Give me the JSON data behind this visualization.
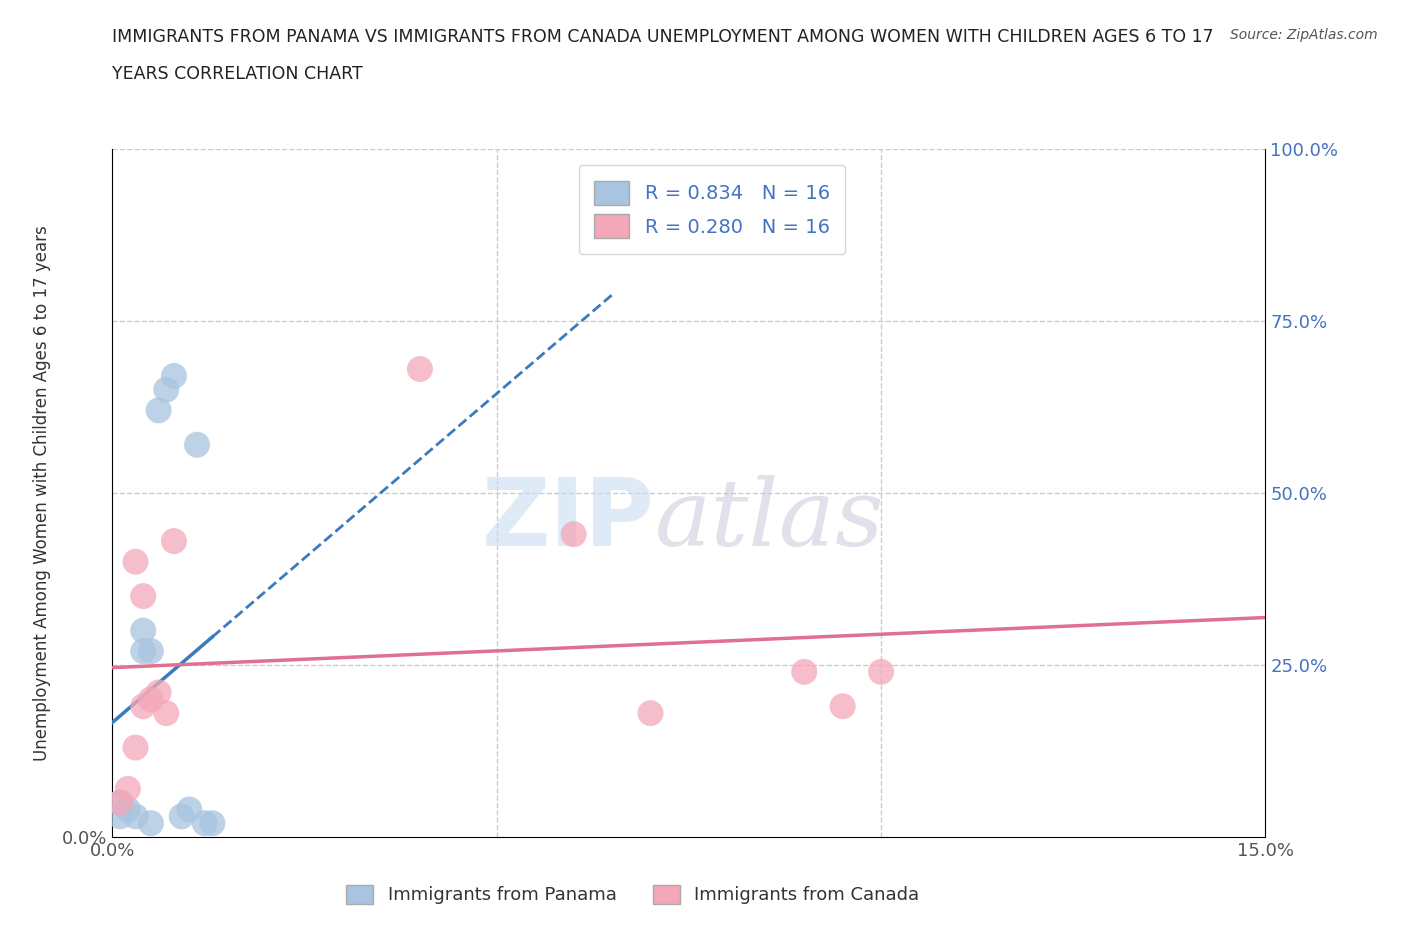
{
  "title_line1": "IMMIGRANTS FROM PANAMA VS IMMIGRANTS FROM CANADA UNEMPLOYMENT AMONG WOMEN WITH CHILDREN AGES 6 TO 17",
  "title_line2": "YEARS CORRELATION CHART",
  "source": "Source: ZipAtlas.com",
  "ylabel": "Unemployment Among Women with Children Ages 6 to 17 years",
  "xlim": [
    0,
    0.15
  ],
  "ylim": [
    0,
    1.0
  ],
  "legend_r1": "R = 0.834   N = 16",
  "legend_r2": "R = 0.280   N = 16",
  "watermark_zip": "ZIP",
  "watermark_atlas": "atlas",
  "panama_color": "#a8c4e0",
  "canada_color": "#f4a7b9",
  "panama_line_color": "#3a7abf",
  "canada_line_color": "#e07090",
  "panama_x": [
    0.001,
    0.001,
    0.002,
    0.003,
    0.004,
    0.004,
    0.005,
    0.005,
    0.006,
    0.007,
    0.008,
    0.009,
    0.01,
    0.011,
    0.012,
    0.013
  ],
  "panama_y": [
    0.03,
    0.05,
    0.04,
    0.03,
    0.27,
    0.3,
    0.02,
    0.27,
    0.62,
    0.65,
    0.67,
    0.03,
    0.04,
    0.57,
    0.02,
    0.02
  ],
  "canada_x": [
    0.001,
    0.002,
    0.003,
    0.003,
    0.004,
    0.004,
    0.005,
    0.006,
    0.007,
    0.008,
    0.04,
    0.06,
    0.07,
    0.09,
    0.095,
    0.1
  ],
  "canada_y": [
    0.05,
    0.07,
    0.13,
    0.4,
    0.19,
    0.35,
    0.2,
    0.21,
    0.18,
    0.43,
    0.68,
    0.44,
    0.18,
    0.24,
    0.19,
    0.24
  ],
  "background_color": "#ffffff",
  "grid_color": "#cccccc",
  "axis_label_color": "#4472c4",
  "tick_color": "#555555"
}
